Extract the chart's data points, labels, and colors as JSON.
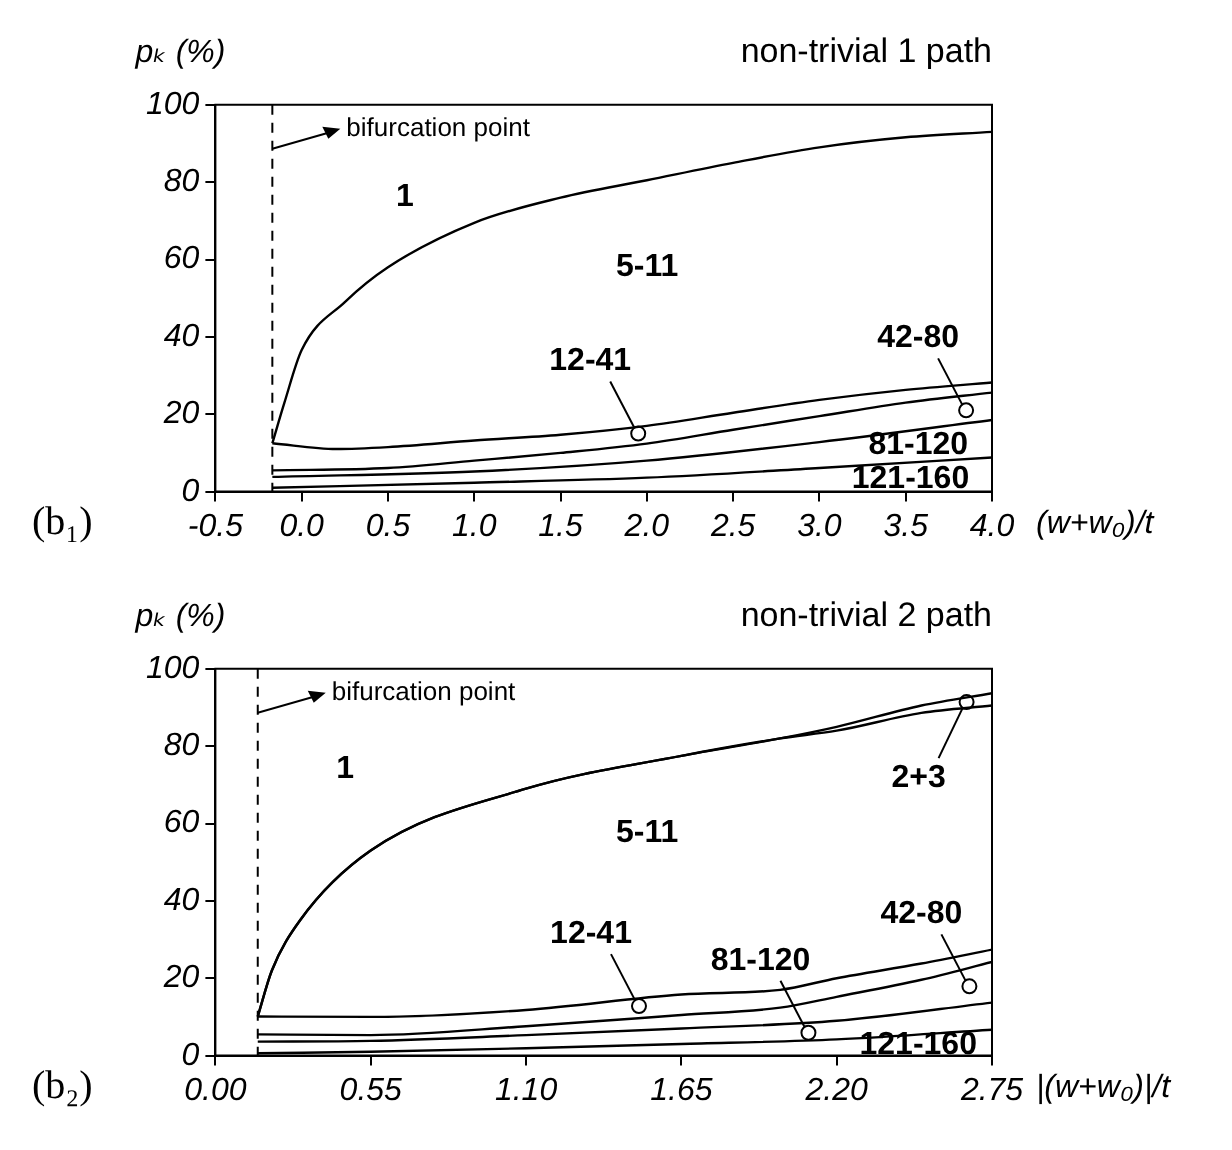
{
  "chart_data": [
    {
      "type": "line",
      "title": "non-trivial 1 path",
      "ylabel": "pₖ (%)",
      "xlabel": "(w+w₀)/t",
      "marker": "none",
      "legend": false,
      "xlim": [
        -0.5,
        4.0
      ],
      "xticks": [
        {
          "value": -0.5,
          "label": "-0.5"
        },
        {
          "value": 0,
          "label": "0.0"
        },
        {
          "value": 0.5,
          "label": "0.5"
        },
        {
          "value": 1,
          "label": "1.0"
        },
        {
          "value": 1.5,
          "label": "1.5"
        },
        {
          "value": 2,
          "label": "2.0"
        },
        {
          "value": 2.5,
          "label": "2.5"
        },
        {
          "value": 3,
          "label": "3.0"
        },
        {
          "value": 3.5,
          "label": "3.5"
        },
        {
          "value": 4,
          "label": "4.0"
        }
      ],
      "ylim": [
        0,
        100
      ],
      "yticks": [
        0,
        20,
        40,
        60,
        80,
        100
      ],
      "series": [
        {
          "type": "line",
          "color": "#000000",
          "x": [
            -0.17,
            -0.1,
            0,
            0.25,
            0.5,
            1,
            1.5,
            2,
            2.5,
            3,
            3.5,
            4
          ],
          "values": [
            12.5,
            23,
            36.6,
            49,
            58,
            69.5,
            76,
            80.5,
            85,
            89,
            91.6,
            93
          ]
        },
        {
          "type": "line",
          "color": "#000000",
          "x": [
            -0.17,
            0.2,
            0.5,
            1,
            1.5,
            2,
            2.5,
            3,
            3.5,
            4
          ],
          "values": [
            12.5,
            11,
            11.5,
            13.2,
            14.7,
            17,
            20.4,
            23.7,
            26.3,
            28.2
          ]
        },
        {
          "type": "line",
          "color": "#000000",
          "x": [
            -0.17,
            0.5,
            1,
            1.5,
            2,
            2.5,
            3,
            3.5,
            4
          ],
          "values": [
            5.5,
            6.1,
            8,
            10,
            12.4,
            16,
            19.5,
            23,
            25.6
          ]
        },
        {
          "type": "line",
          "color": "#000000",
          "x": [
            -0.17,
            1,
            2,
            3,
            4
          ],
          "values": [
            3.8,
            5.2,
            8,
            12.8,
            18.5
          ]
        },
        {
          "type": "line",
          "color": "#000000",
          "x": [
            -0.17,
            1,
            2,
            3,
            4
          ],
          "values": [
            1,
            2.3,
            3.6,
            6.1,
            8.8
          ]
        },
        {
          "type": "scatter",
          "name": "12-41",
          "color": "#000000",
          "marker": "circle",
          "x": [
            1.95
          ],
          "values": [
            15
          ]
        },
        {
          "type": "scatter",
          "name": "42-80",
          "color": "#000000",
          "marker": "circle",
          "x": [
            3.85
          ],
          "values": [
            21
          ]
        }
      ],
      "ref_lines": [
        {
          "axis": "x",
          "value": -0.17,
          "label": "bifurcation point",
          "line_style": "dashed"
        }
      ],
      "annotations": [
        "(b₁)",
        "1",
        "5-11",
        "81-120",
        "121-160"
      ]
    },
    {
      "type": "line",
      "title": "non-trivial 2 path",
      "ylabel": "pₖ (%)",
      "xlabel": "|(w+w₀)|/t",
      "marker": "none",
      "legend": false,
      "xlim": [
        0,
        2.75
      ],
      "xticks": [
        {
          "value": 0,
          "label": "0.00"
        },
        {
          "value": 0.55,
          "label": "0.55"
        },
        {
          "value": 1.1,
          "label": "1.10"
        },
        {
          "value": 1.65,
          "label": "1.65"
        },
        {
          "value": 2.2,
          "label": "2.20"
        },
        {
          "value": 2.75,
          "label": "2.75"
        }
      ],
      "ylim": [
        0,
        100
      ],
      "yticks": [
        0,
        20,
        40,
        60,
        80,
        100
      ],
      "series": [
        {
          "type": "line",
          "color": "#000000",
          "x": [
            0.15,
            0.2,
            0.3,
            0.55,
            1.1,
            1.65,
            2.0,
            2.2,
            2.5,
            2.75
          ],
          "values": [
            10.1,
            22,
            35,
            53,
            69,
            77.5,
            82,
            85,
            90.5,
            93.7
          ]
        },
        {
          "type": "line",
          "color": "#000000",
          "x": [
            0.15,
            0.2,
            0.3,
            0.55,
            1.1,
            1.65,
            2.0,
            2.2,
            2.5,
            2.75
          ],
          "values": [
            10.1,
            22,
            35,
            53,
            69,
            77.5,
            82,
            84,
            88.6,
            90.5
          ]
        },
        {
          "type": "line",
          "color": "#000000",
          "x": [
            0.15,
            0.55,
            1.1,
            1.65,
            2.0,
            2.2,
            2.5,
            2.75
          ],
          "values": [
            10.1,
            10,
            11.8,
            15.8,
            17,
            20,
            23.8,
            27.4
          ]
        },
        {
          "type": "line",
          "color": "#000000",
          "x": [
            0.15,
            0.55,
            1.1,
            1.65,
            2.0,
            2.2,
            2.5,
            2.75
          ],
          "values": [
            5.5,
            5.3,
            7.6,
            10.5,
            12.4,
            15.2,
            19.6,
            24.2
          ]
        },
        {
          "type": "line",
          "color": "#000000",
          "x": [
            0.15,
            0.55,
            1.1,
            1.65,
            2.2,
            2.75
          ],
          "values": [
            3.6,
            3.8,
            5.3,
            7,
            9,
            13.7
          ]
        },
        {
          "type": "line",
          "color": "#000000",
          "x": [
            0.15,
            0.55,
            1.1,
            1.65,
            2.2,
            2.75
          ],
          "values": [
            0.6,
            1,
            1.9,
            3,
            4.2,
            6.7
          ]
        },
        {
          "type": "scatter",
          "name": "2+3",
          "color": "#000000",
          "marker": "circle",
          "x": [
            2.66
          ],
          "values": [
            91.4
          ]
        },
        {
          "type": "scatter",
          "name": "12-41",
          "color": "#000000",
          "marker": "circle",
          "x": [
            1.5
          ],
          "values": [
            12.8
          ]
        },
        {
          "type": "scatter",
          "name": "81-120",
          "color": "#000000",
          "marker": "circle",
          "x": [
            2.1
          ],
          "values": [
            5.9
          ]
        },
        {
          "type": "scatter",
          "name": "42-80",
          "color": "#000000",
          "marker": "circle",
          "x": [
            2.67
          ],
          "values": [
            17.9
          ]
        }
      ],
      "ref_lines": [
        {
          "axis": "x",
          "value": 0.15,
          "label": "bifurcation point",
          "line_style": "dashed"
        }
      ],
      "annotations": [
        "(b₂)",
        "1",
        "5-11",
        "121-160"
      ]
    }
  ]
}
